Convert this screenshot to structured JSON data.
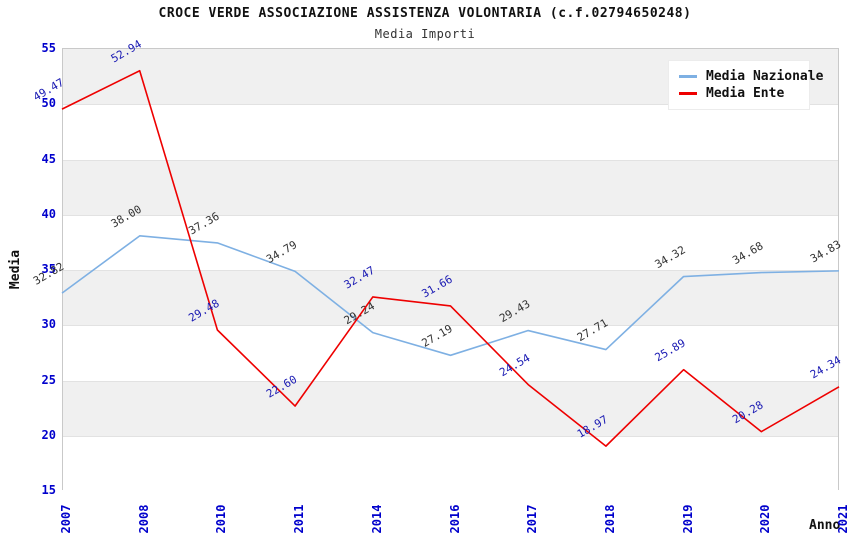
{
  "header": {
    "title": "CROCE VERDE ASSOCIAZIONE ASSISTENZA VOLONTARIA (c.f.02794650248)",
    "subtitle": "Media Importi"
  },
  "legend": {
    "items": [
      {
        "label": "Media Nazionale",
        "color": "#7EB0E3"
      },
      {
        "label": "Media Ente",
        "color": "#EE0000"
      }
    ]
  },
  "axes": {
    "y_label": "Media",
    "x_label": "Anno",
    "y_ticks": [
      55,
      50,
      45,
      40,
      35,
      30,
      25,
      20,
      15
    ],
    "tick_color": "#0000cc"
  },
  "chart_data": {
    "type": "line",
    "title": "CROCE VERDE ASSOCIAZIONE ASSISTENZA VOLONTARIA (c.f.02794650248)",
    "subtitle": "Media Importi",
    "xlabel": "Anno",
    "ylabel": "Media",
    "ylim": [
      15,
      55
    ],
    "grid": "horizontal-bands",
    "band_colors": [
      "#F0F0F0",
      "#FFFFFF"
    ],
    "legend_position": "top-right",
    "categories": [
      "2007",
      "2008",
      "2010",
      "2011",
      "2014",
      "2016",
      "2017",
      "2018",
      "2019",
      "2020",
      "2021"
    ],
    "series": [
      {
        "name": "Media Nazionale",
        "color": "#7EB0E3",
        "label_color": "#333333",
        "values": [
          32.82,
          38.0,
          37.36,
          34.79,
          29.24,
          27.19,
          29.43,
          27.71,
          34.32,
          34.68,
          34.83
        ]
      },
      {
        "name": "Media Ente",
        "color": "#EE0000",
        "label_color": "#1A1AB3",
        "values": [
          49.47,
          52.94,
          29.48,
          22.6,
          32.47,
          31.66,
          24.54,
          18.97,
          25.89,
          20.28,
          24.34
        ]
      }
    ]
  }
}
